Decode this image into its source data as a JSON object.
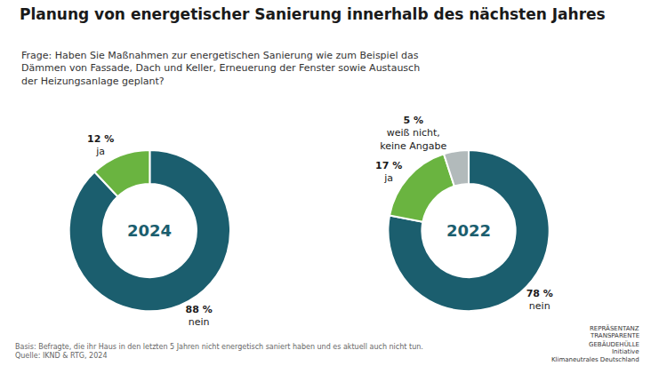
{
  "chart_data": [
    {
      "type": "pie",
      "title": "Planung von energetischer Sanierung innerhalb des nächsten Jahres",
      "subtitle": "Frage: Haben Sie Maßnahmen zur energetischen Sanierung wie zum Beispiel das\nDämmen von Fassade, Dach und Keller, Erneuerung der Fenster sowie Austausch\nder Heizungsanlage geplant?",
      "categories": [
        "nein",
        "ja"
      ],
      "values": [
        88,
        12
      ],
      "value_labels": [
        "88 %",
        "12 %"
      ],
      "colors": [
        "#1b5e6e",
        "#6ab440"
      ],
      "annotations": [
        "2024",
        "Basis: Befragte, die ihr Haus in den letzten 5 Jahren nicht energetisch saniert haben und es aktuell auch nicht tun.\nQuelle: IKND & RTG, 2024"
      ]
    },
    {
      "type": "pie",
      "categories": [
        "nein",
        "ja",
        "weiß nicht,\nkeine Angabe"
      ],
      "values": [
        78,
        17,
        5
      ],
      "value_labels": [
        "78 %",
        "17 %",
        "5 %"
      ],
      "colors": [
        "#1b5e6e",
        "#6ab440",
        "#b2babb"
      ],
      "annotations": [
        "2022",
        "REPRÄSENTANZ",
        "TRANSPARENTE",
        "GEBÄUDEHÜLLE",
        "Initiative",
        "Klimaneutrales Deutschland"
      ]
    }
  ]
}
